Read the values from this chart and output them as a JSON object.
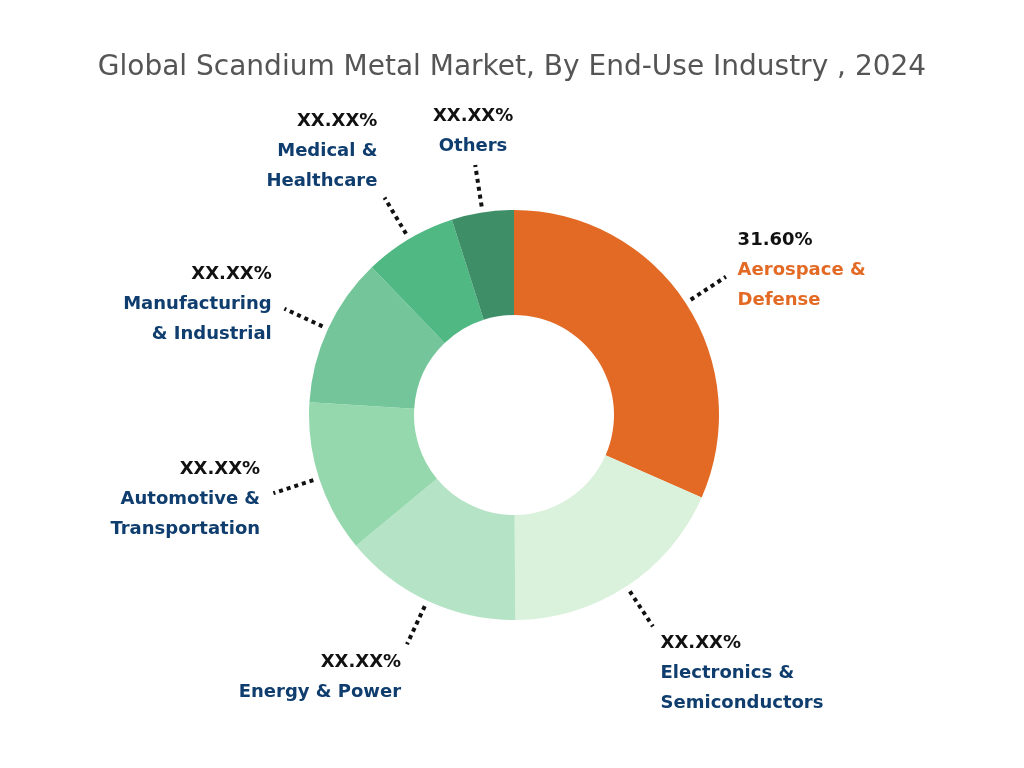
{
  "chart_data": {
    "type": "donut",
    "title": "Global Scandium Metal Market, By End-Use Industry , 2024",
    "categories": [
      "Aerospace & Defense",
      "Electronics & Semiconductors",
      "Energy & Power",
      "Automotive & Transportation",
      "Manufacturing & Industrial",
      "Medical & Healthcare",
      "Others"
    ],
    "values": [
      31.6,
      18.3,
      14.1,
      12,
      11.8,
      7.3,
      4.9
    ],
    "value_labels": [
      "31.60%",
      "XX.XX%",
      "XX.XX%",
      "XX.XX%",
      "XX.XX%",
      "XX.XX%",
      "XX.XX%"
    ],
    "colors": [
      "#e36a25",
      "#daf1dc",
      "#b5e3c5",
      "#96d8ae",
      "#74c69a",
      "#4fb883",
      "#3e8f68"
    ]
  }
}
